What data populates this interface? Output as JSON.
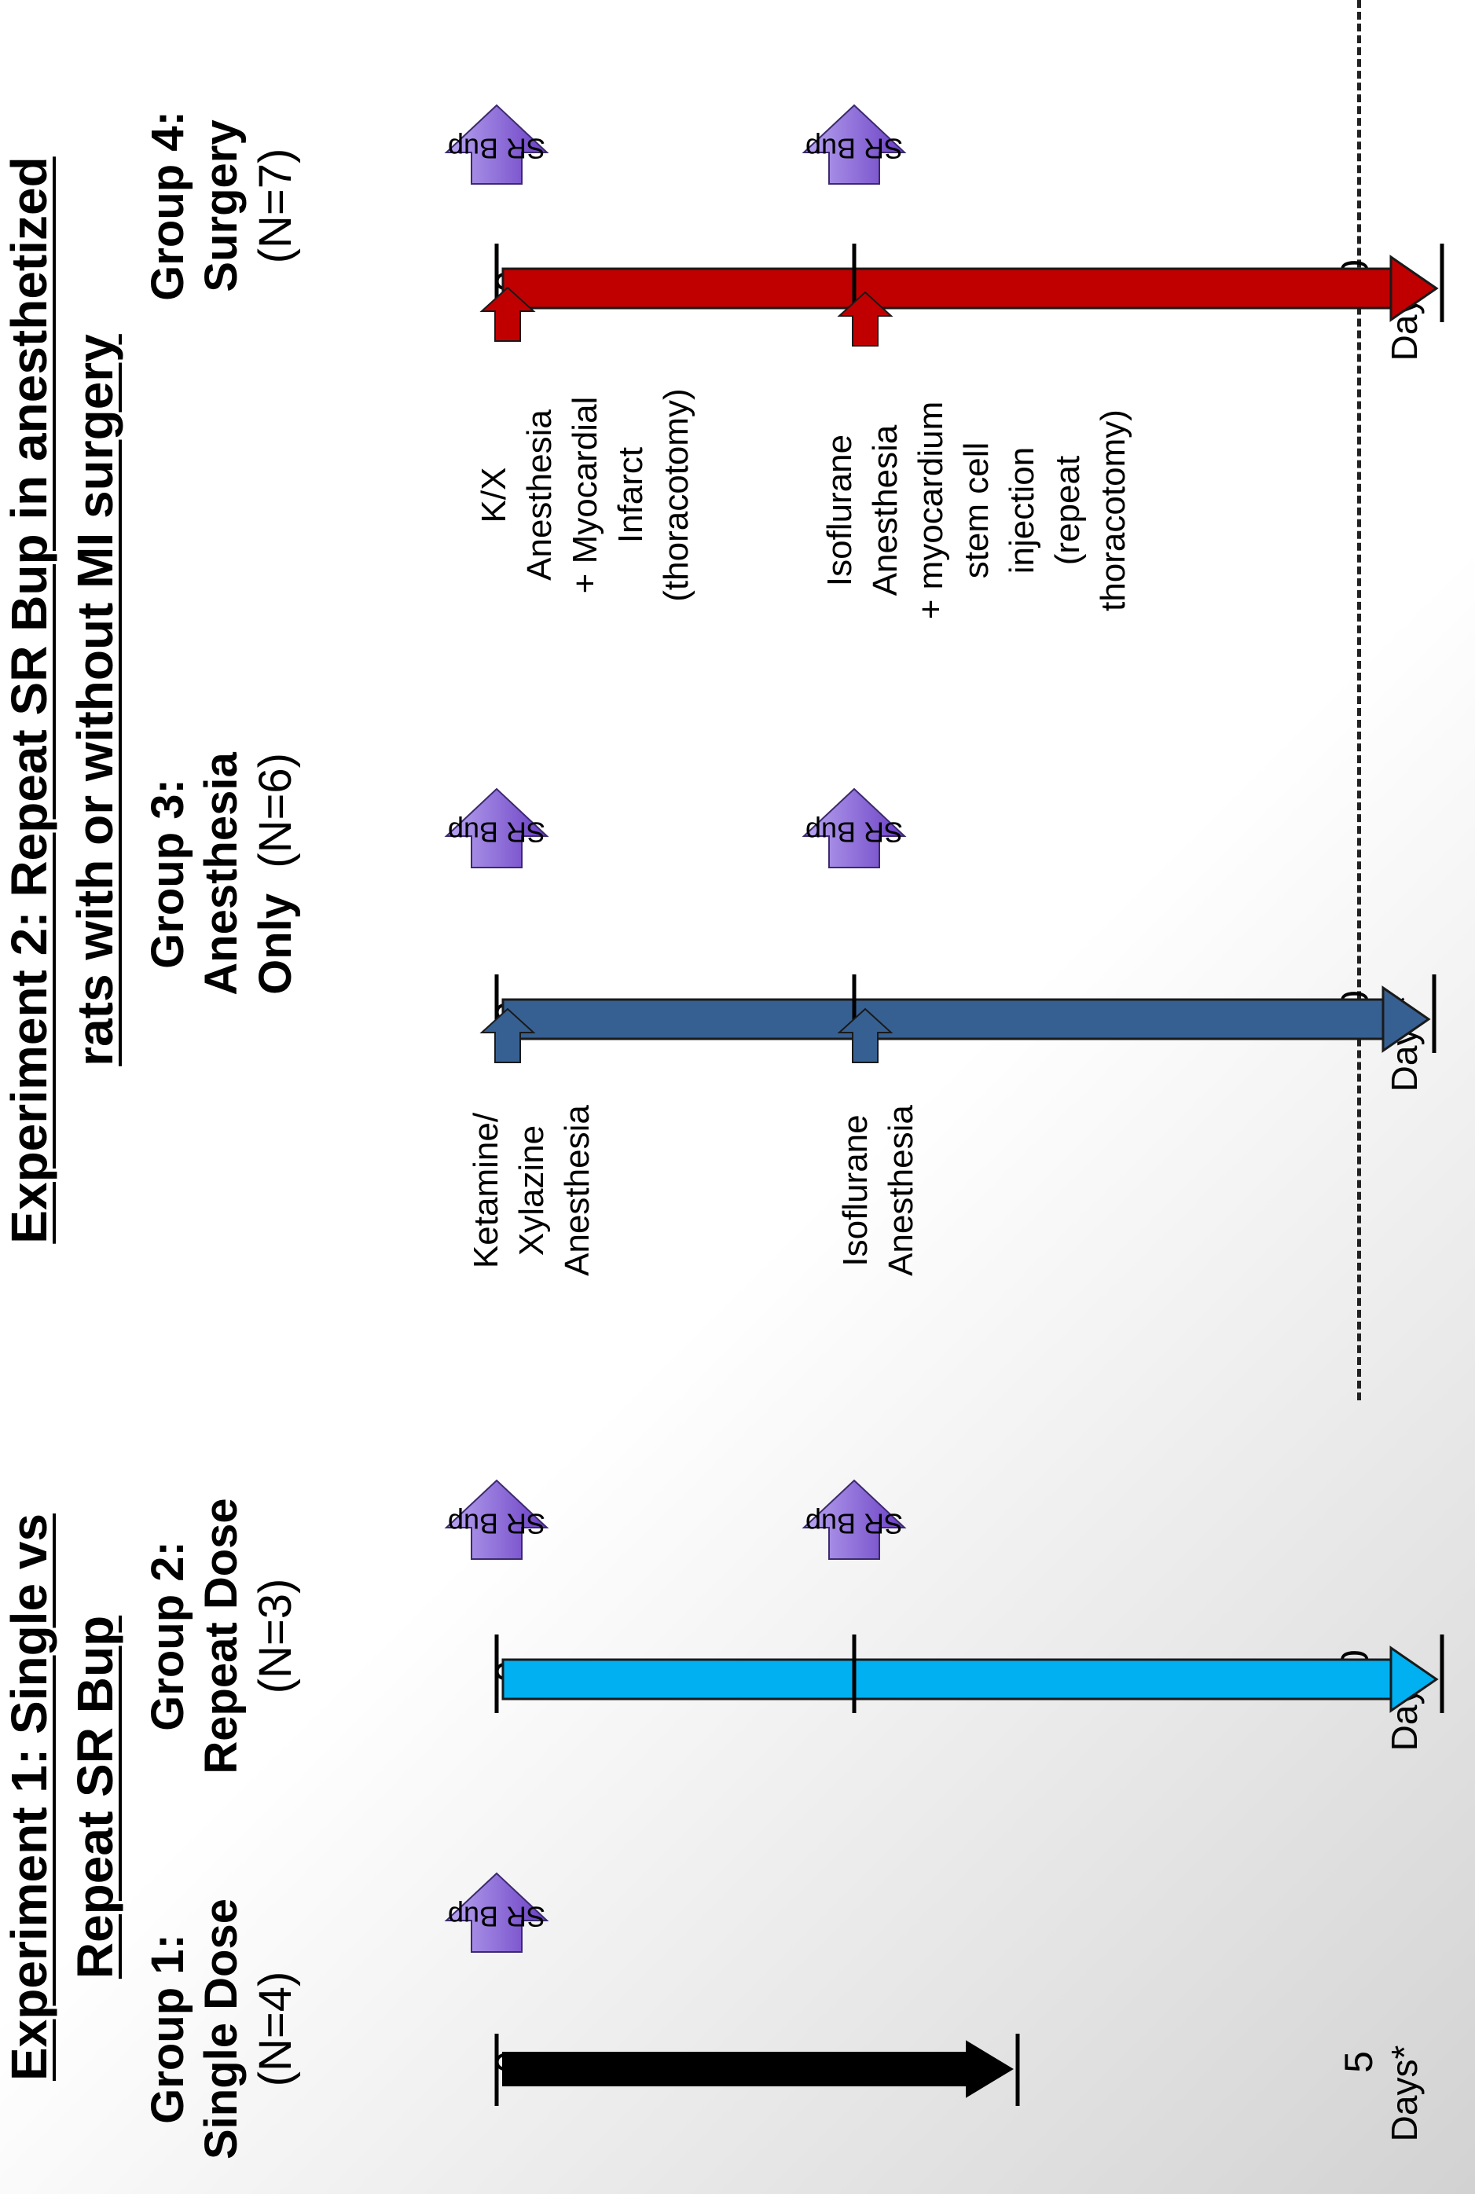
{
  "experiment1": {
    "title_line1": "Experiment 1: Single vs",
    "title_line2": "Repeat SR Bup"
  },
  "experiment2": {
    "title_line1": "Experiment 2: Repeat SR Bup in anesthetized",
    "title_line2": "rats with or without MI surgery"
  },
  "dose_label": "SR Bup",
  "groups": [
    {
      "name_line1": "Group 1:",
      "name_line2": "Single Dose",
      "n": "(N=4)",
      "color": "#000000",
      "start": "0",
      "end": "5",
      "mid": "",
      "dose_days": [
        "0"
      ],
      "unit": "Days*"
    },
    {
      "name_line1": "Group 2:",
      "name_line2": "Repeat Dose",
      "n": "(N=3)",
      "color": "#00b0f0",
      "start": "0",
      "end": "10",
      "mid": "4",
      "dose_days": [
        "0",
        "4"
      ],
      "unit": "Days*"
    },
    {
      "name_line1": "Group 3:",
      "name_line2": "Anesthesia",
      "name_line3": "Only",
      "n": "(N=6)",
      "color": "#376092",
      "start": "0",
      "end": "10",
      "mid": "4",
      "dose_days": [
        "0",
        "4"
      ],
      "unit": "Days*",
      "event_day0": [
        "Ketamine/",
        "Xylazine",
        "Anesthesia"
      ],
      "event_day4": [
        "Isoflurane",
        "Anesthesia"
      ]
    },
    {
      "name_line1": "Group 4:",
      "name_line2": "Surgery",
      "n": "(N=7)",
      "color": "#c00000",
      "start": "0",
      "end": "10",
      "mid": "4",
      "dose_days": [
        "0",
        "4"
      ],
      "unit": "Days*",
      "event_day0": [
        "K/X",
        "Anesthesia",
        "+ Myocardial",
        "Infarct",
        "(thoracotomy)"
      ],
      "event_day4": [
        "Isoflurane",
        "Anesthesia",
        "+ myocardium",
        "stem cell",
        "injection",
        "(repeat",
        "thoracotomy)"
      ]
    }
  ],
  "colors": {
    "sr_bup_arrow_top": "#b9a6f0",
    "sr_bup_arrow_bottom": "#6a3fc4",
    "divider": "#222222"
  }
}
